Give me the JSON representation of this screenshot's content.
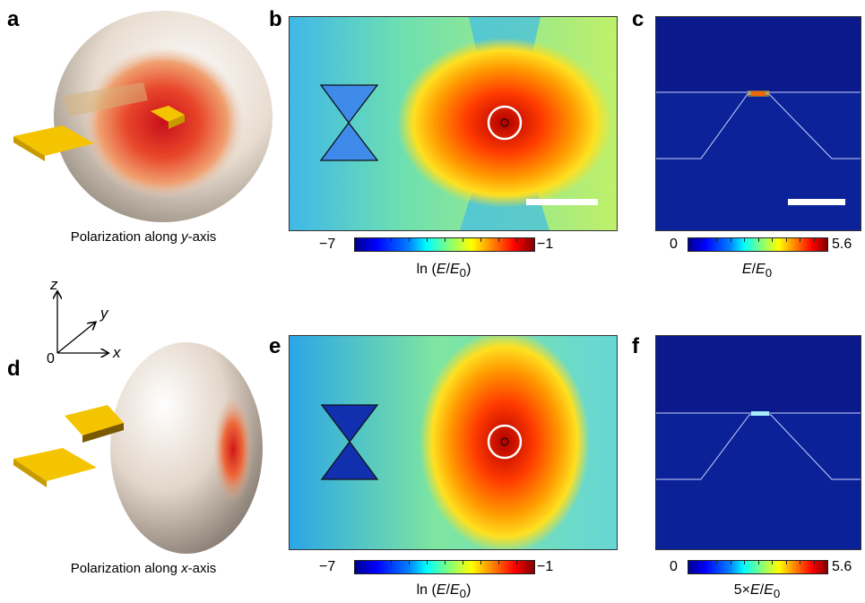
{
  "panels": {
    "a": {
      "label": "a",
      "caption_pre": "Polarization along ",
      "caption_axis": "y",
      "caption_post": "-axis"
    },
    "b": {
      "label": "b"
    },
    "c": {
      "label": "c"
    },
    "d": {
      "label": "d",
      "caption_pre": "Polarization along ",
      "caption_axis": "x",
      "caption_post": "-axis"
    },
    "e": {
      "label": "e"
    },
    "f": {
      "label": "f"
    }
  },
  "colorbars": {
    "b": {
      "min": "−7",
      "max": "−1",
      "label_pre": "ln (",
      "label_E": "E",
      "label_slash": "/",
      "label_E0": "E",
      "label_sub": "0",
      "label_post": ")"
    },
    "c": {
      "min": "0",
      "max": "5.6",
      "label_E": "E",
      "label_slash": "/",
      "label_E0": "E",
      "label_sub": "0"
    },
    "e": {
      "min": "−7",
      "max": "−1",
      "label_pre": "ln (",
      "label_E": "E",
      "label_slash": "/",
      "label_E0": "E",
      "label_sub": "0",
      "label_post": ")"
    },
    "f": {
      "min": "0",
      "max": "5.6",
      "label_pre": "5×",
      "label_E": "E",
      "label_slash": "/",
      "label_E0": "E",
      "label_sub": "0"
    }
  },
  "axes": {
    "z": "z",
    "y": "y",
    "x": "x",
    "origin": "0"
  },
  "colors": {
    "field_dark_blue": "#0a1a8c",
    "gold": "#f5c400",
    "torus": "#e8ddd2",
    "hotspot": "#d81e1e"
  }
}
